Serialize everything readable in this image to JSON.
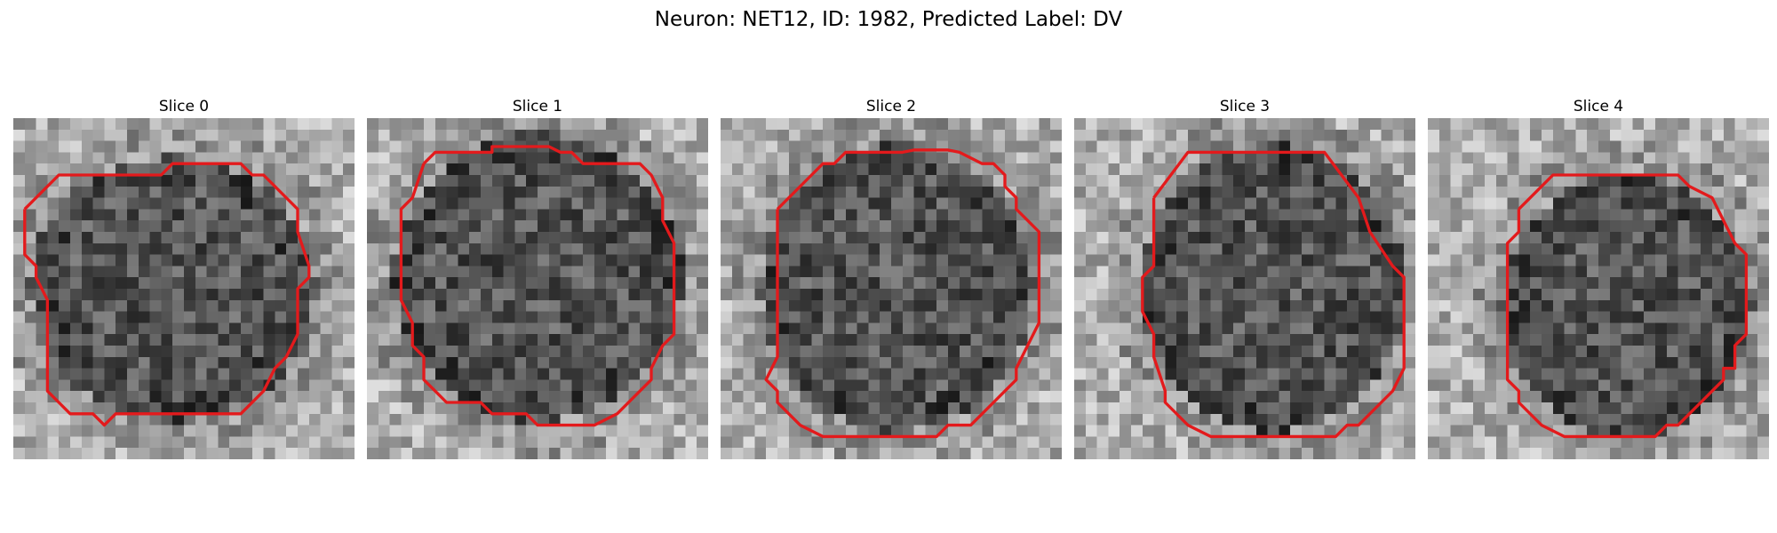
{
  "figure": {
    "title": "Neuron: NET12, ID: 1982, Predicted Label: DV",
    "contour_color": "#e31a1c",
    "colormap": "grayscale",
    "slices": [
      {
        "label": "Slice 0"
      },
      {
        "label": "Slice 1"
      },
      {
        "label": "Slice 2"
      },
      {
        "label": "Slice 3"
      },
      {
        "label": "Slice 4"
      }
    ]
  }
}
